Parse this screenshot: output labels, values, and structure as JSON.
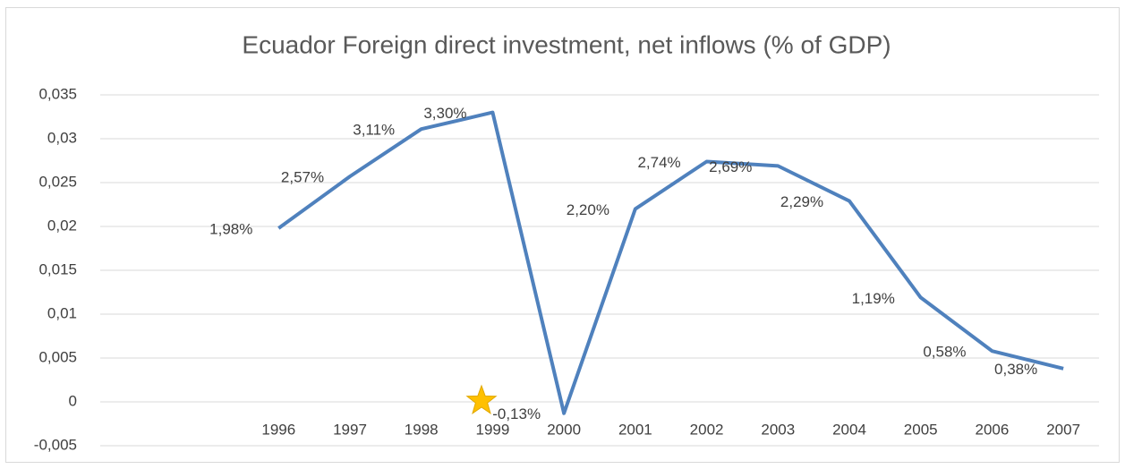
{
  "chart_data": {
    "type": "line",
    "title": "Ecuador Foreign direct investment, net inflows (% of GDP)",
    "categories": [
      null,
      null,
      "1996",
      "1997",
      "1998",
      "1999",
      "2000",
      "2001",
      "2002",
      "2003",
      "2004",
      "2005",
      "2006",
      "2007"
    ],
    "series": [
      {
        "name": "Ecuador",
        "color": "#4f81bd",
        "values": [
          null,
          null,
          0.0198,
          0.0257,
          0.0311,
          0.033,
          -0.0013,
          0.022,
          0.0274,
          0.0269,
          0.0229,
          0.0119,
          0.0058,
          0.0038
        ],
        "value_labels": [
          null,
          null,
          "1,98%",
          "2,57%",
          "3,11%",
          "3,30%",
          "-0,13%",
          "2,20%",
          "2,74%",
          "2,69%",
          "2,29%",
          "1,19%",
          "0,58%",
          "0,38%"
        ]
      }
    ],
    "ylim": [
      -0.005,
      0.035
    ],
    "yticks": [
      {
        "value": -0.005,
        "label": "-0,005"
      },
      0,
      {
        "value": 0.005,
        "label": "0,005"
      },
      {
        "value": 0.01,
        "label": "0,01"
      },
      {
        "value": 0.015,
        "label": "0,015"
      },
      {
        "value": 0.02,
        "label": "0,02"
      },
      {
        "value": 0.025,
        "label": "0,025"
      },
      {
        "value": 0.03,
        "label": "0,03"
      },
      {
        "value": 0.035,
        "label": "0,035"
      }
    ],
    "grid": true
  }
}
